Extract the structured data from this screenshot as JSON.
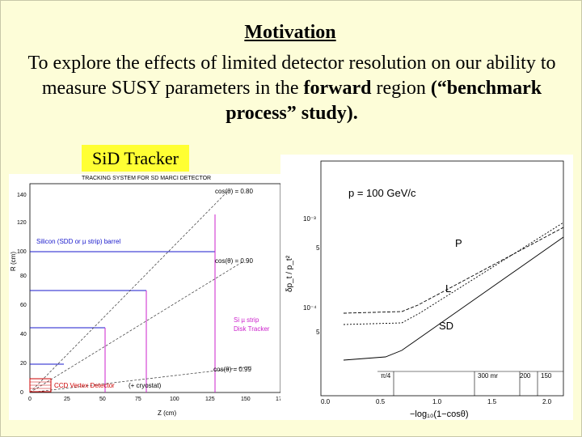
{
  "slide": {
    "title": "Motivation",
    "body_plain_1": "To explore the effects of limited detector resolution on our ability to measure SUSY parameters in the ",
    "body_bold_1": "forward",
    "body_plain_2": " region ",
    "body_bold_2": "(“benchmark process” study).",
    "tag": "SiD Tracker"
  },
  "left_figure": {
    "header": "TRACKING SYSTEM FOR SD MARCI DETECTOR",
    "ylabel": "R (cm)",
    "xlabel": "Z (cm)",
    "yticks": [
      "0",
      "20",
      "40",
      "60",
      "80",
      "100",
      "120",
      "140"
    ],
    "xticks": [
      "0",
      "25",
      "50",
      "75",
      "100",
      "125",
      "150",
      "175"
    ],
    "barrel_label": "Silicon (SDD or µ strip) barrel",
    "cos080": "cos(θ) = 0.80",
    "cos090": "cos(θ) = 0.90",
    "cos099": "cos(θ) = 0.99",
    "disk_label_1": "Si µ strip",
    "disk_label_2": "Disk Tracker",
    "ccd_label": "CCD Vertex Detector",
    "ccd_suffix": "(+ cryostat)"
  },
  "right_figure": {
    "ylabel": "δp_t / p_t²",
    "xlabel": "−log₁₀(1−cosθ)",
    "momentum": "p = 100 GeV/c",
    "yticks": [
      "10⁻³",
      "5",
      "10⁻⁴",
      "5"
    ],
    "xticks": [
      "0.0",
      "0.5",
      "1.0",
      "1.5",
      "2.0"
    ],
    "top_labels": [
      "π/4",
      "300 mr",
      "200",
      "150"
    ],
    "curve_labels": [
      "P",
      "L",
      "SD"
    ]
  }
}
